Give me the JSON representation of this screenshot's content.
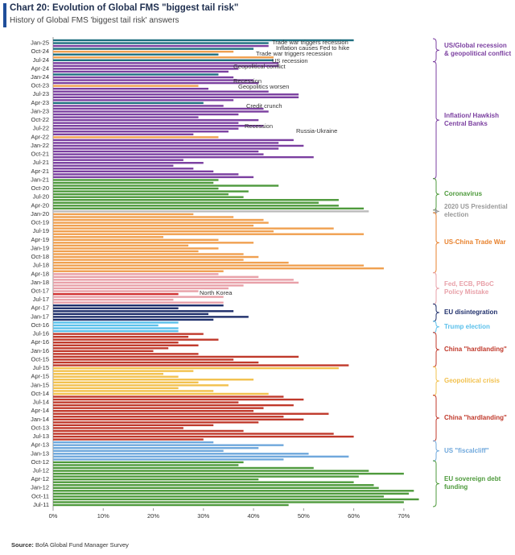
{
  "chart_data": {
    "type": "barh",
    "title": "Chart 20: Evolution of Global FMS \"biggest tail risk\"",
    "subtitle": "History of Global FMS 'biggest tail risk' answers",
    "source_label": "Source:",
    "source": "BofA Global Fund Manager Survey",
    "xlim": [
      0,
      75
    ],
    "xticks": [
      {
        "value": 0,
        "label": "0%"
      },
      {
        "value": 10,
        "label": "10%"
      },
      {
        "value": 20,
        "label": "20%"
      },
      {
        "value": 30,
        "label": "30%"
      },
      {
        "value": 40,
        "label": "40%"
      },
      {
        "value": 50,
        "label": "50%"
      },
      {
        "value": 60,
        "label": "60%"
      },
      {
        "value": 70,
        "label": "70%"
      }
    ],
    "categories": [
      "Jul-11",
      null,
      null,
      "Oct-11",
      null,
      null,
      "Jan-12",
      null,
      null,
      "Apr-12",
      null,
      null,
      "Jul-12",
      null,
      null,
      "Oct-12",
      null,
      null,
      "Jan-13",
      null,
      null,
      "Apr-13",
      null,
      null,
      "Jul-13",
      null,
      null,
      "Oct-13",
      null,
      null,
      "Jan-14",
      null,
      null,
      "Apr-14",
      null,
      null,
      "Jul-14",
      null,
      null,
      "Oct-14",
      null,
      null,
      "Jan-15",
      null,
      null,
      "Apr-15",
      null,
      null,
      "Jul-15",
      null,
      null,
      "Oct-15",
      null,
      null,
      "Jan-16",
      null,
      null,
      "Apr-16",
      null,
      null,
      "Jul-16",
      null,
      null,
      "Oct-16",
      null,
      null,
      "Jan-17",
      null,
      null,
      "Apr-17",
      null,
      null,
      "Jul-17",
      null,
      null,
      "Oct-17",
      null,
      null,
      "Jan-18",
      null,
      null,
      "Apr-18",
      null,
      null,
      "Jul-18",
      null,
      null,
      "Oct-18",
      null,
      null,
      "Jan-19",
      null,
      null,
      "Apr-19",
      null,
      null,
      "Jul-19",
      null,
      null,
      "Oct-19",
      null,
      null,
      "Jan-20",
      null,
      null,
      "Apr-20",
      null,
      null,
      "Jul-20",
      null,
      null,
      "Oct-20",
      null,
      null,
      "Jan-21",
      null,
      null,
      "Apr-21",
      null,
      null,
      "Jul-21",
      null,
      null,
      "Oct-21",
      null,
      null,
      "Jan-22",
      null,
      null,
      "Apr-22",
      null,
      null,
      "Jul-22",
      null,
      null,
      "Oct-22",
      null,
      null,
      "Jan-23",
      null,
      null,
      "Apr-23",
      null,
      null,
      "Jul-23",
      null,
      null,
      "Oct-23",
      null,
      null,
      "Jan-24",
      null,
      null,
      "Apr-24",
      null,
      null,
      "Jul-24",
      null,
      null,
      "Oct-24",
      null,
      null,
      "Jan-25",
      null
    ],
    "values": [
      47,
      70,
      73,
      66,
      71,
      72,
      65,
      64,
      60,
      41,
      61,
      70,
      63,
      52,
      37,
      38,
      46,
      59,
      51,
      34,
      41,
      46,
      32,
      30,
      60,
      56,
      38,
      26,
      32,
      41,
      50,
      46,
      55,
      40,
      42,
      48,
      37,
      50,
      46,
      43,
      32,
      25,
      35,
      29,
      40,
      25,
      22,
      28,
      57,
      59,
      41,
      36,
      49,
      29,
      20,
      23,
      29,
      25,
      33,
      27,
      30,
      25,
      25,
      21,
      25,
      32,
      39,
      31,
      36,
      25,
      34,
      34,
      24,
      34,
      25,
      29,
      35,
      38,
      49,
      48,
      41,
      33,
      34,
      66,
      62,
      47,
      38,
      41,
      38,
      29,
      33,
      27,
      40,
      33,
      22,
      62,
      44,
      56,
      40,
      43,
      42,
      36,
      28,
      63,
      62,
      57,
      53,
      57,
      38,
      35,
      39,
      33,
      45,
      32,
      33,
      40,
      37,
      32,
      28,
      24,
      30,
      26,
      52,
      42,
      41,
      45,
      50,
      45,
      48,
      33,
      28,
      35,
      37,
      42,
      37,
      41,
      29,
      37,
      43,
      42,
      34,
      30,
      36,
      49,
      49,
      43,
      31,
      29,
      41,
      40,
      36,
      33,
      35,
      37,
      45,
      45,
      44,
      44,
      33,
      36,
      40,
      43,
      43,
      60
    ],
    "colors": [
      "#4e9a3c",
      "#4e9a3c",
      "#4e9a3c",
      "#4e9a3c",
      "#4e9a3c",
      "#4e9a3c",
      "#4e9a3c",
      "#4e9a3c",
      "#4e9a3c",
      "#4e9a3c",
      "#4e9a3c",
      "#4e9a3c",
      "#4e9a3c",
      "#4e9a3c",
      "#4e9a3c",
      "#4e9a3c",
      "#6fa8dc",
      "#6fa8dc",
      "#6fa8dc",
      "#6fa8dc",
      "#6fa8dc",
      "#6fa8dc",
      "#6fa8dc",
      "#c0392b",
      "#c0392b",
      "#c0392b",
      "#c0392b",
      "#c0392b",
      "#c0392b",
      "#c0392b",
      "#c0392b",
      "#c0392b",
      "#c0392b",
      "#c0392b",
      "#c0392b",
      "#c0392b",
      "#c0392b",
      "#c0392b",
      "#c0392b",
      "#f2c14e",
      "#f2c14e",
      "#f2c14e",
      "#f2c14e",
      "#f2c14e",
      "#f2c14e",
      "#f2c14e",
      "#f2c14e",
      "#f2c14e",
      "#f2c14e",
      "#c0392b",
      "#c0392b",
      "#c0392b",
      "#c0392b",
      "#c0392b",
      "#c0392b",
      "#c0392b",
      "#c0392b",
      "#c0392b",
      "#c0392b",
      "#c0392b",
      "#c0392b",
      "#5bc0eb",
      "#5bc0eb",
      "#5bc0eb",
      "#5bc0eb",
      "#1f2f6b",
      "#1f2f6b",
      "#1f2f6b",
      "#1f2f6b",
      "#1f2f6b",
      "#1f2f6b",
      "#e8a0a8",
      "#e8a0a8",
      "#e8a0a8",
      "#d03030",
      "#e8a0a8",
      "#e8a0a8",
      "#e8a0a8",
      "#e8a0a8",
      "#e8a0a8",
      "#e8a0a8",
      "#e8a0a8",
      "#f0a050",
      "#f0a050",
      "#f0a050",
      "#f0a050",
      "#f0a050",
      "#f0a050",
      "#f0a050",
      "#f0a050",
      "#f0a050",
      "#f0a050",
      "#f0a050",
      "#f0a050",
      "#f0a050",
      "#f0a050",
      "#f0a050",
      "#f0a050",
      "#f0a050",
      "#f0a050",
      "#f0a050",
      "#f0a050",
      "#f0a050",
      "#bbbbbb",
      "#4e9a3c",
      "#4e9a3c",
      "#4e9a3c",
      "#4e9a3c",
      "#4e9a3c",
      "#4e9a3c",
      "#4e9a3c",
      "#4e9a3c",
      "#4e9a3c",
      "#4e9a3c",
      "#4e9a3c",
      "#7b3fa0",
      "#7b3fa0",
      "#7b3fa0",
      "#7b3fa0",
      "#7b3fa0",
      "#7b3fa0",
      "#7b3fa0",
      "#7b3fa0",
      "#7b3fa0",
      "#7b3fa0",
      "#7b3fa0",
      "#7b3fa0",
      "#7b3fa0",
      "#7b3fa0",
      "#f0a050",
      "#7b3fa0",
      "#7b3fa0",
      "#7b3fa0",
      "#7b3fa0",
      "#7b3fa0",
      "#7b3fa0",
      "#7b3fa0",
      "#7b3fa0",
      "#7b3fa0",
      "#7b3fa0",
      "#7b3fa0",
      "#1f6f80",
      "#7b3fa0",
      "#7b3fa0",
      "#7b3fa0",
      "#7b3fa0",
      "#7b3fa0",
      "#f0a050",
      "#7b3fa0",
      "#7b3fa0",
      "#7b3fa0",
      "#1f6f80",
      "#7b3fa0",
      "#7b3fa0",
      "#7b3fa0",
      "#7b3fa0",
      "#1f6f80",
      "#f0a050",
      "#1f6f80",
      "#f0a050",
      "#1f6f80",
      "#7b3fa0",
      "#1f6f80",
      "#1f6f80"
    ],
    "annotations": [
      {
        "text": "Trade war triggers recession",
        "color": "#1f6f80"
      },
      {
        "text": "Inflation causes Fed to hike",
        "color": "#7b3fa0"
      },
      {
        "text": "Trade war triggers recession",
        "color": "#1f2f6b"
      },
      {
        "text": "US recession",
        "color": "#1f6f80"
      },
      {
        "text": "Geopolitical conflict",
        "color": "#f0a050"
      },
      {
        "text": "Recession",
        "color": "#1f6f80"
      },
      {
        "text": "Geopolitics worsen",
        "color": "#f0a050"
      },
      {
        "text": "Credit crunch",
        "color": "#1f3f70"
      },
      {
        "text": "Recession",
        "color": "#1f6f80"
      },
      {
        "text": "Russia-Ukraine",
        "color": "#f0a050"
      },
      {
        "text": "North Korea",
        "color": "#d03030"
      }
    ],
    "groups": [
      {
        "label": "US/Global recession & geopolitical conflict",
        "color": "#7b3fa0"
      },
      {
        "label": "Inflation/ Hawkish Central Banks",
        "color": "#7b3fa0"
      },
      {
        "label": "Coronavirus",
        "color": "#4e9a3c"
      },
      {
        "label": "2020 US Presidential election",
        "color": "#999999"
      },
      {
        "label": "US-China Trade War",
        "color": "#e8822e"
      },
      {
        "label": "Fed, ECB, PBoC Policy Mistake",
        "color": "#e8a0a8"
      },
      {
        "label": "EU disintegration",
        "color": "#1f2f6b"
      },
      {
        "label": "Trump election",
        "color": "#5bc0eb"
      },
      {
        "label": "China \"hardlanding\"",
        "color": "#c0392b"
      },
      {
        "label": "Geopolitical crisis",
        "color": "#f2c14e"
      },
      {
        "label": "China \"hardlanding\"",
        "color": "#c0392b"
      },
      {
        "label": "US \"fiscalcliff\"",
        "color": "#6fa8dc"
      },
      {
        "label": "EU sovereign debt funding",
        "color": "#4e9a3c"
      }
    ]
  }
}
